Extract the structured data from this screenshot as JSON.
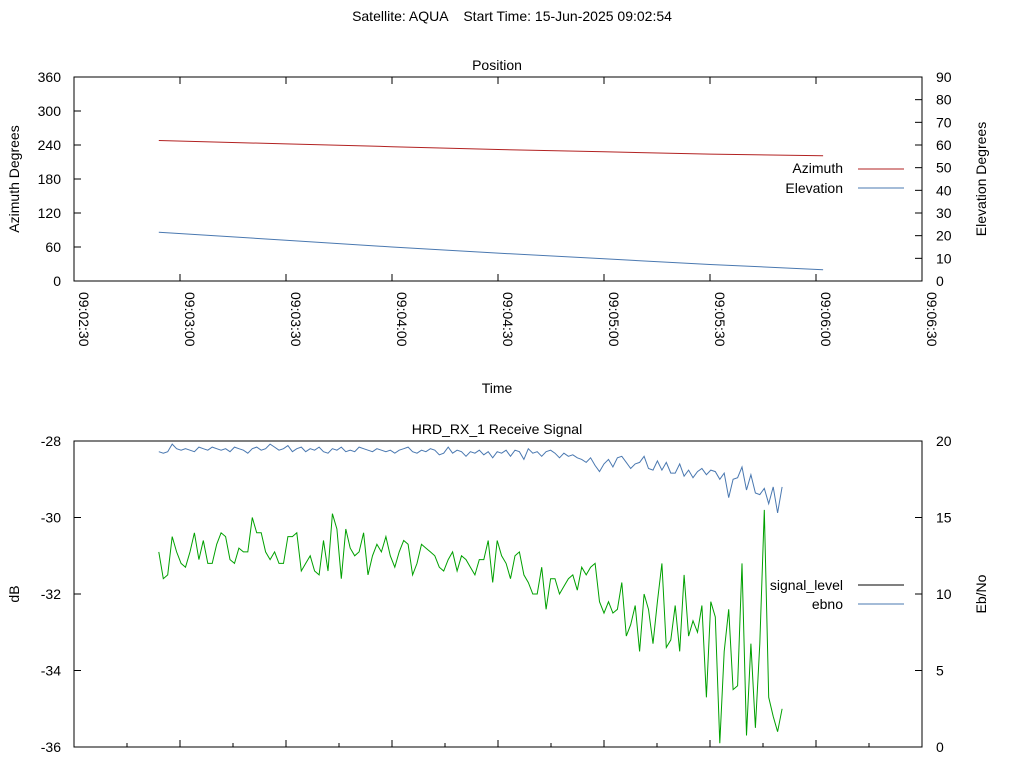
{
  "header": {
    "title": "Satellite: AQUA    Start Time: 15-Jun-2025 09:02:54"
  },
  "chart_data": [
    {
      "type": "line",
      "title": "Position",
      "xlabel": "Time",
      "ylabel": "Azimuth Degrees",
      "y2label": "Elevation Degrees",
      "xlim": [
        "09:02:30",
        "09:06:30"
      ],
      "x_tick_labels": [
        "09:02:30",
        "09:03:00",
        "09:03:30",
        "09:04:00",
        "09:04:30",
        "09:05:00",
        "09:05:30",
        "09:06:00",
        "09:06:30"
      ],
      "ylim": [
        0,
        360
      ],
      "y_ticks": [
        "0",
        "60",
        "120",
        "180",
        "240",
        "300",
        "360"
      ],
      "y2lim": [
        0,
        90
      ],
      "y2_ticks": [
        "0",
        "10",
        "20",
        "30",
        "40",
        "50",
        "60",
        "70",
        "80",
        "90"
      ],
      "legend_position": "right",
      "grid": false,
      "series": [
        {
          "name": "Azimuth",
          "axis": "left",
          "color": "#b22222",
          "points": [
            [
              "09:02:54",
              248
            ],
            [
              "09:03:30",
              242
            ],
            [
              "09:04:00",
              237
            ],
            [
              "09:04:30",
              232
            ],
            [
              "09:05:00",
              228
            ],
            [
              "09:05:30",
              224
            ],
            [
              "09:06:02",
              221
            ]
          ]
        },
        {
          "name": "Elevation",
          "axis": "right",
          "color": "#4a78b0",
          "points": [
            [
              "09:02:54",
              21.5
            ],
            [
              "09:03:30",
              18.0
            ],
            [
              "09:04:00",
              15.0
            ],
            [
              "09:04:30",
              12.3
            ],
            [
              "09:05:00",
              9.8
            ],
            [
              "09:05:30",
              7.3
            ],
            [
              "09:06:02",
              5.0
            ]
          ]
        }
      ]
    },
    {
      "type": "line",
      "title": "HRD_RX_1 Receive Signal",
      "ylabel": "dB",
      "y2label": "Eb/No",
      "xlim": [
        "09:02:30",
        "09:06:30"
      ],
      "ylim": [
        -36,
        -28
      ],
      "y_ticks": [
        "-36",
        "-34",
        "-32",
        "-30",
        "-28"
      ],
      "y2lim": [
        0,
        20
      ],
      "y2_ticks": [
        "0",
        "5",
        "10",
        "15",
        "20"
      ],
      "legend_position": "right",
      "grid": false,
      "series": [
        {
          "name": "signal_level",
          "axis": "left",
          "legend_color": "#000000",
          "color": "#00a000",
          "x_start": "09:02:54",
          "x_step_seconds": 1.26,
          "values": [
            -30.9,
            -31.6,
            -31.5,
            -30.5,
            -30.9,
            -31.2,
            -31.3,
            -30.9,
            -30.4,
            -31.1,
            -30.6,
            -31.2,
            -31.2,
            -30.7,
            -30.4,
            -30.5,
            -31.1,
            -31.2,
            -30.8,
            -30.9,
            -30.9,
            -30.0,
            -30.4,
            -30.4,
            -30.9,
            -31.1,
            -30.9,
            -31.2,
            -31.2,
            -30.5,
            -30.5,
            -30.4,
            -31.4,
            -31.2,
            -31.0,
            -31.4,
            -31.5,
            -30.6,
            -31.4,
            -29.9,
            -30.3,
            -31.6,
            -30.3,
            -30.8,
            -31.0,
            -30.9,
            -30.4,
            -31.5,
            -31.0,
            -30.7,
            -30.9,
            -30.5,
            -31.0,
            -31.3,
            -30.9,
            -30.6,
            -30.7,
            -31.5,
            -31.2,
            -30.7,
            -30.8,
            -30.9,
            -31.0,
            -31.3,
            -31.4,
            -31.1,
            -30.9,
            -31.4,
            -31.0,
            -31.1,
            -31.3,
            -31.5,
            -31.1,
            -31.1,
            -30.6,
            -31.7,
            -30.6,
            -31.0,
            -31.2,
            -31.6,
            -31.0,
            -30.9,
            -31.5,
            -31.7,
            -32.0,
            -32.0,
            -31.3,
            -32.4,
            -31.6,
            -31.6,
            -32.0,
            -31.8,
            -31.6,
            -31.5,
            -31.9,
            -31.3,
            -31.5,
            -31.3,
            -31.2,
            -32.2,
            -32.5,
            -32.2,
            -32.5,
            -32.4,
            -31.7,
            -33.1,
            -32.8,
            -32.3,
            -33.5,
            -32.0,
            -32.4,
            -33.3,
            -32.2,
            -31.2,
            -33.4,
            -33.2,
            -32.3,
            -33.5,
            -31.5,
            -33.1,
            -32.7,
            -33.0,
            -32.3,
            -34.7,
            -32.2,
            -32.6,
            -35.9,
            -33.5,
            -32.4,
            -34.5,
            -34.4,
            -31.2,
            -35.7,
            -33.3,
            -35.5,
            -33.3,
            -29.8,
            -34.7,
            -35.2,
            -35.6,
            -35.0
          ]
        },
        {
          "name": "ebno",
          "axis": "right",
          "color": "#4a78b0",
          "x_start": "09:02:54",
          "x_step_seconds": 1.26,
          "values": [
            19.3,
            19.2,
            19.3,
            19.8,
            19.5,
            19.4,
            19.5,
            19.4,
            19.3,
            19.6,
            19.5,
            19.4,
            19.6,
            19.5,
            19.4,
            19.5,
            19.3,
            19.6,
            19.5,
            19.4,
            19.2,
            19.5,
            19.6,
            19.4,
            19.5,
            19.8,
            19.6,
            19.4,
            19.5,
            19.7,
            19.3,
            19.5,
            19.6,
            19.3,
            19.5,
            19.4,
            19.6,
            19.3,
            19.2,
            19.5,
            19.4,
            19.6,
            19.3,
            19.4,
            19.3,
            19.6,
            19.5,
            19.4,
            19.3,
            19.5,
            19.4,
            19.3,
            19.4,
            19.2,
            19.4,
            19.5,
            19.6,
            19.3,
            19.2,
            19.4,
            19.3,
            19.5,
            19.4,
            19.1,
            19.2,
            19.6,
            19.2,
            19.4,
            19.3,
            19.0,
            19.3,
            19.2,
            19.4,
            19.1,
            19.3,
            18.9,
            19.3,
            19.2,
            19.4,
            19.0,
            19.4,
            19.3,
            18.8,
            19.5,
            19.2,
            19.3,
            19.0,
            19.3,
            19.4,
            19.2,
            18.9,
            19.2,
            19.0,
            19.1,
            18.9,
            18.8,
            18.6,
            18.9,
            18.4,
            18.0,
            18.5,
            18.8,
            18.3,
            18.9,
            19.0,
            18.6,
            18.2,
            18.5,
            18.6,
            19.0,
            18.2,
            18.1,
            18.7,
            18.1,
            18.6,
            17.9,
            17.9,
            18.5,
            17.7,
            18.1,
            17.6,
            18.0,
            18.2,
            17.8,
            18.1,
            18.0,
            17.5,
            17.9,
            16.3,
            17.5,
            17.6,
            18.3,
            16.8,
            17.8,
            16.6,
            16.5,
            16.9,
            15.9,
            17.0,
            15.3,
            17.0
          ]
        }
      ]
    }
  ]
}
